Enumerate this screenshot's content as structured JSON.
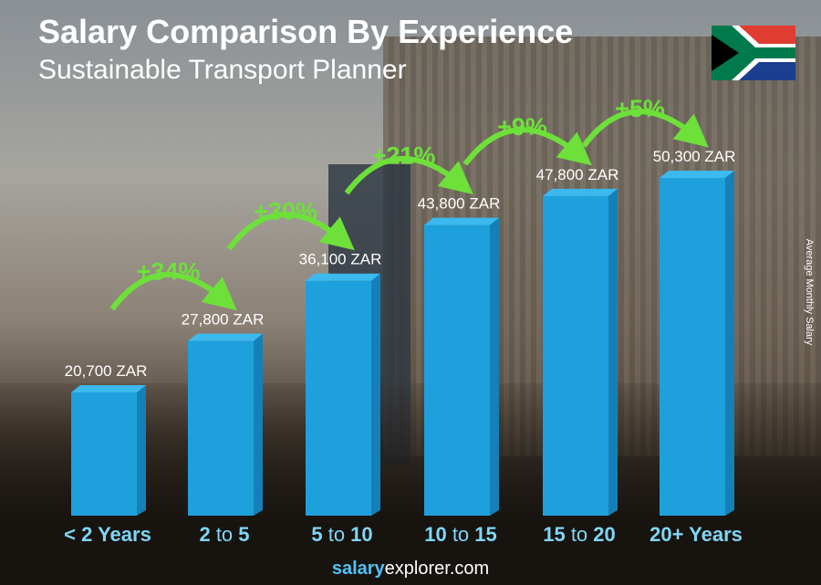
{
  "title": "Salary Comparison By Experience",
  "subtitle": "Sustainable Transport Planner",
  "ylabel": "Average Monthly Salary",
  "footer": {
    "brand_bold": "salary",
    "brand_rest": "explorer.com"
  },
  "flag": "south-africa",
  "colors": {
    "bar": "#1ea0dc",
    "bar_side": "#1580b8",
    "bar_top": "#3cb9ef",
    "arrow": "#6ee03a",
    "category": "#7fd6f7"
  },
  "chart_data": {
    "type": "bar",
    "categories": [
      {
        "a": "< 2 Years",
        "b": "",
        "c": ""
      },
      {
        "a": "2",
        "b": " to ",
        "c": "5"
      },
      {
        "a": "5",
        "b": " to ",
        "c": "10"
      },
      {
        "a": "10",
        "b": " to ",
        "c": "15"
      },
      {
        "a": "15",
        "b": " to ",
        "c": "20"
      },
      {
        "a": "20+ Years",
        "b": "",
        "c": ""
      }
    ],
    "values": [
      20700,
      27800,
      36100,
      43800,
      47800,
      50300
    ],
    "value_labels": [
      "20,700 ZAR",
      "27,800 ZAR",
      "36,100 ZAR",
      "43,800 ZAR",
      "47,800 ZAR",
      "50,300 ZAR"
    ],
    "changes": [
      "+34%",
      "+30%",
      "+21%",
      "+9%",
      "+5%"
    ],
    "ylabel": "Average Monthly Salary",
    "unit": "ZAR"
  }
}
